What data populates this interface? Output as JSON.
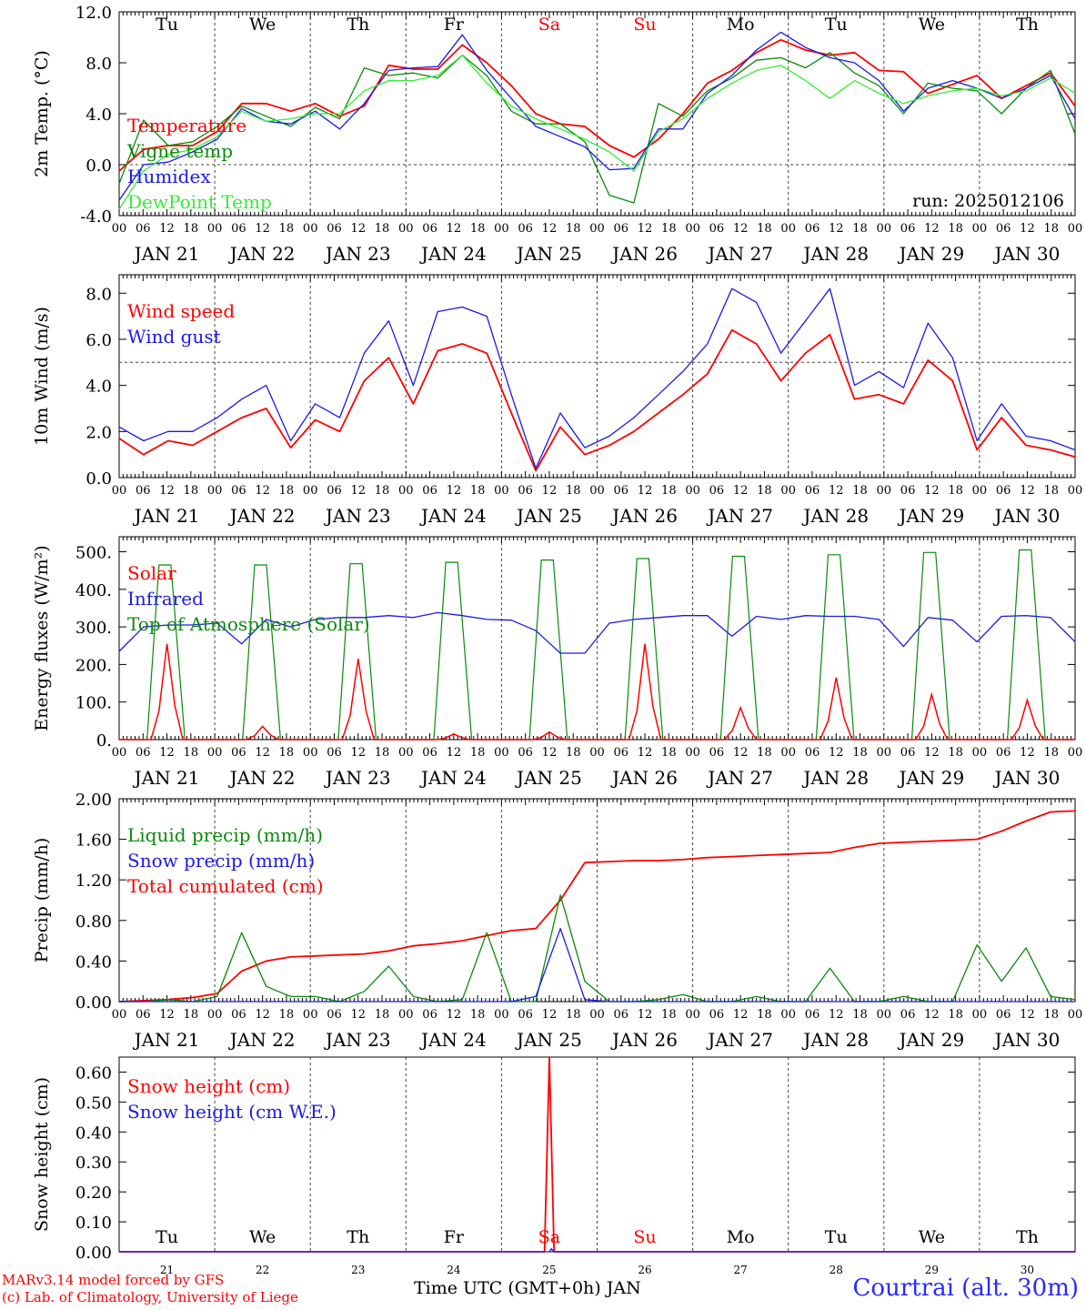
{
  "colors": {
    "red": "#ff0000",
    "green": "#0a8a0a",
    "blue": "#1a1ae6",
    "lightgreen": "#33ee33",
    "axis": "#000000",
    "weekend": "#ff0000"
  },
  "days": {
    "dates": [
      "JAN 21",
      "JAN 22",
      "JAN 23",
      "JAN 24",
      "JAN 25",
      "JAN 26",
      "JAN 27",
      "JAN 28",
      "JAN 29",
      "JAN 30"
    ],
    "weekdays": [
      "Tu",
      "We",
      "Th",
      "Fr",
      "Sa",
      "Su",
      "Mo",
      "Tu",
      "We",
      "Th"
    ],
    "weekend_flags": [
      false,
      false,
      false,
      false,
      true,
      true,
      false,
      false,
      false,
      false
    ],
    "hour_ticks": [
      "00",
      "06",
      "12",
      "18"
    ],
    "day_numbers": [
      "21",
      "22",
      "23",
      "24",
      "25",
      "26",
      "27",
      "28",
      "29",
      "30"
    ]
  },
  "footer": {
    "model": "MARv3.14 model forced by GFS",
    "credit": "(c) Lab. of Climatology, University of Liege",
    "xlabel": "Time UTC (GMT+0h) JAN",
    "station": "Courtrai (alt. 30m)"
  },
  "chart_data": [
    {
      "type": "line",
      "ylabel": "2m Temp. (°C)",
      "ylim": [
        -4,
        12
      ],
      "yticks": [
        "-4.0",
        "0.0",
        "4.0",
        "8.0",
        "12.0"
      ],
      "yticks_values": [
        -4,
        0,
        4,
        8,
        12
      ],
      "refline": 0,
      "annotation": "run: 2025012106",
      "legend": [
        "Temperature",
        "Vigne temp",
        "Humidex",
        "DewPoint Temp"
      ],
      "series": [
        {
          "name": "Temperature",
          "color": "red",
          "values": [
            -0.5,
            1.2,
            1.5,
            1.5,
            2.6,
            4.8,
            4.8,
            4.2,
            4.8,
            3.8,
            4.6,
            7.8,
            7.5,
            7.5,
            9.4,
            8.0,
            6.2,
            4.0,
            3.2,
            3.0,
            1.5,
            0.6,
            2.0,
            4.0,
            6.4,
            7.4,
            8.8,
            9.8,
            9.0,
            8.6,
            8.8,
            7.4,
            7.3,
            5.6,
            6.3,
            7.0,
            5.2,
            6.2,
            7.2,
            4.6
          ],
          "x_start": 0.0
        },
        {
          "name": "Vigne temp",
          "color": "green",
          "values": [
            -1.5,
            3.5,
            1.5,
            1.8,
            3.0,
            4.6,
            3.8,
            3.0,
            4.5,
            3.6,
            7.6,
            7.0,
            7.2,
            6.8,
            8.6,
            7.0,
            4.2,
            3.2,
            3.2,
            1.8,
            -2.4,
            -3.0,
            4.8,
            3.8,
            5.8,
            6.8,
            8.2,
            8.4,
            7.6,
            8.8,
            7.2,
            6.2,
            4.0,
            6.4,
            6.0,
            5.8,
            4.0,
            6.0,
            7.4,
            2.4
          ],
          "x_start": 0.0
        },
        {
          "name": "Humidex",
          "color": "blue",
          "values": [
            -2.8,
            0.0,
            0.2,
            1.0,
            2.0,
            4.4,
            3.4,
            3.2,
            4.2,
            2.8,
            4.8,
            7.4,
            7.6,
            7.7,
            10.2,
            7.4,
            5.2,
            3.0,
            2.2,
            1.4,
            -0.4,
            -0.3,
            2.8,
            2.8,
            5.6,
            7.0,
            9.0,
            10.4,
            9.2,
            8.4,
            8.0,
            6.6,
            4.2,
            6.0,
            6.6,
            6.0,
            5.2,
            6.0,
            7.0,
            3.6
          ],
          "x_start": 0.0
        },
        {
          "name": "DewPoint Temp",
          "color": "lightgreen",
          "values": [
            -3.5,
            -0.5,
            0.8,
            1.2,
            2.2,
            4.2,
            3.4,
            3.6,
            4.0,
            4.0,
            5.8,
            6.6,
            6.6,
            7.0,
            8.6,
            6.4,
            4.6,
            3.6,
            2.8,
            2.0,
            1.0,
            -0.5,
            2.6,
            3.6,
            5.2,
            6.4,
            7.4,
            7.8,
            6.6,
            5.2,
            6.6,
            5.6,
            4.8,
            5.4,
            5.8,
            6.0,
            5.4,
            5.8,
            6.8,
            5.6
          ],
          "x_start": 0.0
        }
      ]
    },
    {
      "type": "line",
      "ylabel": "10m Wind (m/s)",
      "ylim": [
        0,
        8.8
      ],
      "yticks": [
        "0.0",
        "2.0",
        "4.0",
        "6.0",
        "8.0"
      ],
      "yticks_values": [
        0,
        2,
        4,
        6,
        8
      ],
      "refline": 5,
      "legend": [
        "Wind speed",
        "Wind gust"
      ],
      "series": [
        {
          "name": "Wind speed",
          "color": "red",
          "values": [
            1.7,
            1.0,
            1.6,
            1.4,
            2.0,
            2.6,
            3.0,
            1.3,
            2.5,
            2.0,
            4.2,
            5.2,
            3.2,
            5.5,
            5.8,
            5.4,
            2.8,
            0.3,
            2.2,
            1.0,
            1.4,
            2.0,
            2.8,
            3.6,
            4.5,
            6.4,
            5.8,
            4.2,
            5.4,
            6.2,
            3.4,
            3.6,
            3.2,
            5.1,
            4.2,
            1.2,
            2.6,
            1.4,
            1.2,
            0.9
          ],
          "x_start": 0.0
        },
        {
          "name": "Wind gust",
          "color": "blue",
          "values": [
            2.2,
            1.6,
            2.0,
            2.0,
            2.6,
            3.4,
            4.0,
            1.6,
            3.2,
            2.6,
            5.4,
            6.8,
            4.0,
            7.2,
            7.4,
            7.0,
            3.6,
            0.4,
            2.8,
            1.3,
            1.8,
            2.6,
            3.6,
            4.6,
            5.8,
            8.2,
            7.6,
            5.4,
            6.8,
            8.2,
            4.0,
            4.6,
            3.9,
            6.7,
            5.2,
            1.6,
            3.2,
            1.8,
            1.6,
            1.2
          ],
          "x_start": 0.0
        }
      ]
    },
    {
      "type": "line",
      "ylabel": "Energy fluxes (W/m²)",
      "ylim": [
        0,
        540
      ],
      "yticks": [
        "0.",
        "100.",
        "200.",
        "300.",
        "400.",
        "500."
      ],
      "yticks_values": [
        0,
        100,
        200,
        300,
        400,
        500
      ],
      "legend": [
        "Solar",
        "Infrared",
        "Top of Atmosphere (Solar)"
      ],
      "solar_peaks": [
        255,
        35,
        215,
        15,
        20,
        255,
        85,
        165,
        120,
        105
      ],
      "toa_peaks": [
        465,
        465,
        468,
        472,
        478,
        482,
        488,
        492,
        498,
        505
      ],
      "series": [
        {
          "name": "Infrared",
          "color": "blue",
          "values": [
            235,
            300,
            305,
            305,
            310,
            255,
            320,
            300,
            320,
            325,
            325,
            330,
            325,
            338,
            330,
            320,
            318,
            290,
            230,
            230,
            310,
            320,
            325,
            330,
            330,
            275,
            328,
            320,
            330,
            328,
            328,
            320,
            248,
            325,
            318,
            260,
            328,
            330,
            325,
            260
          ],
          "x_start": 0.0
        }
      ]
    },
    {
      "type": "line",
      "ylabel": "Precip (mm/h)",
      "ylim": [
        0,
        2.0
      ],
      "yticks": [
        "0.00",
        "0.40",
        "0.80",
        "1.20",
        "1.60",
        "2.00"
      ],
      "yticks_values": [
        0,
        0.4,
        0.8,
        1.2,
        1.6,
        2.0
      ],
      "legend": [
        "Liquid precip (mm/h)",
        "Snow precip (mm/h)",
        "Total cumulated (cm)"
      ],
      "series": [
        {
          "name": "Total cumulated (cm)",
          "color": "red",
          "values": [
            0.0,
            0.01,
            0.02,
            0.04,
            0.08,
            0.3,
            0.4,
            0.44,
            0.45,
            0.46,
            0.47,
            0.5,
            0.55,
            0.57,
            0.6,
            0.65,
            0.7,
            0.72,
            1.0,
            1.37,
            1.38,
            1.39,
            1.39,
            1.4,
            1.42,
            1.43,
            1.44,
            1.45,
            1.46,
            1.47,
            1.52,
            1.56,
            1.57,
            1.58,
            1.59,
            1.6,
            1.68,
            1.78,
            1.87,
            1.88
          ],
          "x_start": 0.0
        },
        {
          "name": "Liquid precip (mm/h)",
          "color": "green",
          "values": [
            0.0,
            0.0,
            0.02,
            0.0,
            0.05,
            0.68,
            0.15,
            0.05,
            0.05,
            0.0,
            0.1,
            0.35,
            0.05,
            0.0,
            0.02,
            0.68,
            0.0,
            0.0,
            1.05,
            0.2,
            0.0,
            0.0,
            0.02,
            0.07,
            0.0,
            0.0,
            0.05,
            0.0,
            0.0,
            0.33,
            0.0,
            0.0,
            0.05,
            0.0,
            0.0,
            0.56,
            0.2,
            0.53,
            0.05,
            0.02
          ],
          "x_start": 0.0
        },
        {
          "name": "Snow precip (mm/h)",
          "color": "blue",
          "values": [
            0.0,
            0.0,
            0.0,
            0.0,
            0.0,
            0.0,
            0.0,
            0.0,
            0.0,
            0.0,
            0.0,
            0.0,
            0.0,
            0.0,
            0.0,
            0.0,
            0.0,
            0.05,
            0.72,
            0.02,
            0.0,
            0.0,
            0.0,
            0.0,
            0.0,
            0.0,
            0.0,
            0.0,
            0.0,
            0.0,
            0.0,
            0.0,
            0.0,
            0.0,
            0.0,
            0.0,
            0.0,
            0.0,
            0.0,
            0.0
          ],
          "x_start": 0.0
        }
      ]
    },
    {
      "type": "line",
      "ylabel": "Snow height (cm)",
      "ylim": [
        0,
        0.65
      ],
      "yticks": [
        "0.00",
        "0.10",
        "0.20",
        "0.30",
        "0.40",
        "0.50",
        "0.60"
      ],
      "yticks_values": [
        0,
        0.1,
        0.2,
        0.3,
        0.4,
        0.5,
        0.6
      ],
      "legend": [
        "Snow height (cm)",
        "Snow height (cm W.E.)"
      ],
      "series": [
        {
          "name": "Snow height (cm)",
          "color": "red",
          "points": [
            [
              0,
              0
            ],
            [
              4.45,
              0
            ],
            [
              4.5,
              0.65
            ],
            [
              4.55,
              0
            ],
            [
              10,
              0
            ]
          ]
        },
        {
          "name": "Snow height (cm W.E.)",
          "color": "blue",
          "points": [
            [
              0,
              0
            ],
            [
              4.5,
              0
            ],
            [
              4.52,
              0.01
            ],
            [
              4.55,
              0
            ],
            [
              10,
              0
            ]
          ]
        }
      ]
    }
  ]
}
